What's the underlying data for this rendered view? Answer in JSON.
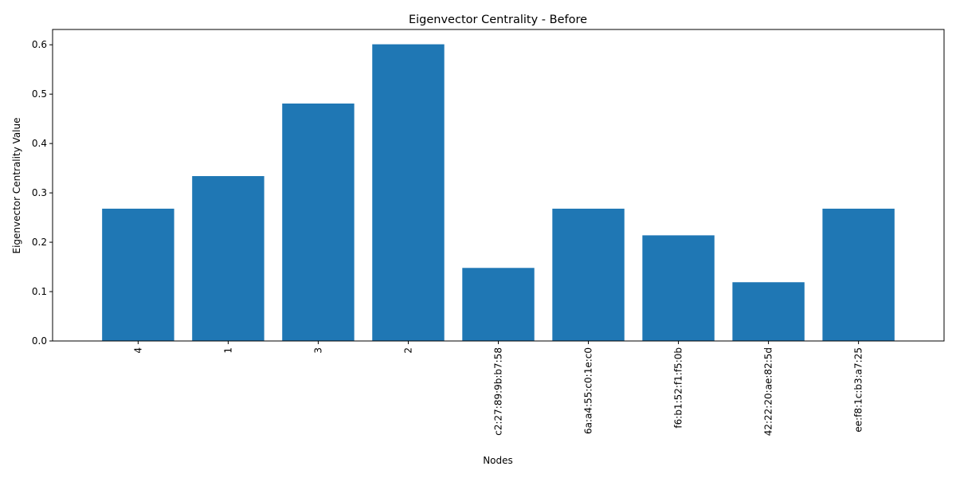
{
  "chart_data": {
    "type": "bar",
    "title": "Eigenvector Centrality - Before",
    "xlabel": "Nodes",
    "ylabel": "Eigenvector Centrality Value",
    "categories": [
      "4",
      "1",
      "3",
      "2",
      "c2:27:89:9b:b7:58",
      "6a:a4:55:c0:1e:c0",
      "f6:b1:52:f1:f5:0b",
      "42:22:20:ae:82:5d",
      "ee:f8:1c:b3:a7:25"
    ],
    "values": [
      0.268,
      0.334,
      0.481,
      0.601,
      0.148,
      0.268,
      0.214,
      0.119,
      0.268
    ],
    "ylim": [
      0,
      0.631
    ],
    "yticks": [
      0.0,
      0.1,
      0.2,
      0.3,
      0.4,
      0.5,
      0.6
    ],
    "ytick_labels": [
      "0.0",
      "0.1",
      "0.2",
      "0.3",
      "0.4",
      "0.5",
      "0.6"
    ],
    "bar_color": "#1f77b4",
    "grid": false
  }
}
